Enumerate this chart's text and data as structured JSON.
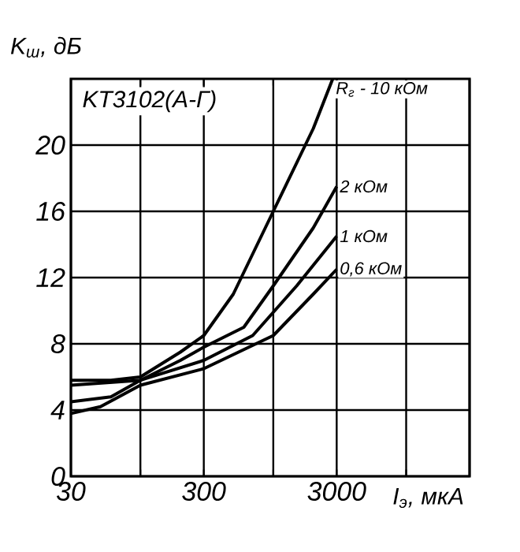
{
  "chart_data": {
    "type": "line",
    "xlabel": "I$_{э}$, мкА",
    "ylabel": "K$_{ш}$, дБ",
    "annotations": [
      "KT3102(A-Г)"
    ],
    "log": "x",
    "grid": true,
    "marker": "none",
    "line_style": "solid",
    "xlim": [
      30,
      30000
    ],
    "ylim": [
      0,
      24
    ],
    "xticks": [
      30,
      {
        "value": 100,
        "label": null
      },
      300,
      {
        "value": 1000,
        "label": null
      },
      3000,
      {
        "value": 10000,
        "label": null
      },
      {
        "value": 30000,
        "label": null
      }
    ],
    "yticks": [
      0,
      4,
      8,
      12,
      16,
      20
    ],
    "series": [
      {
        "name": "R$_{г}$ - 10 кОм",
        "color": "#000000",
        "x": [
          30,
          60,
          100,
          200,
          300,
          500,
          1000,
          2000,
          2800
        ],
        "values": [
          5.8,
          5.8,
          6,
          7.5,
          8.5,
          11,
          16,
          21,
          24
        ]
      },
      {
        "name": "2 кОм",
        "color": "#000000",
        "x": [
          30,
          100,
          200,
          300,
          600,
          1000,
          2000,
          3000
        ],
        "values": [
          5.5,
          5.8,
          7,
          7.8,
          9,
          11.5,
          15,
          17.5
        ]
      },
      {
        "name": "1 кОм",
        "color": "#000000",
        "x": [
          30,
          60,
          100,
          300,
          700,
          1500,
          3000
        ],
        "values": [
          4.5,
          4.8,
          5.8,
          7,
          8.5,
          11.5,
          14.5
        ]
      },
      {
        "name": "0,6 кОм",
        "color": "#000000",
        "x": [
          30,
          50,
          100,
          300,
          1000,
          2000,
          3000
        ],
        "values": [
          3.8,
          4.2,
          5.5,
          6.5,
          8.5,
          11,
          12.5
        ]
      }
    ]
  }
}
